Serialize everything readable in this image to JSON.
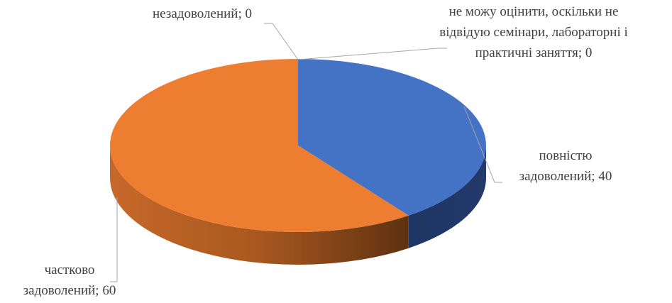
{
  "chart_data": {
    "type": "pie",
    "values": [
      40,
      60,
      0,
      0
    ],
    "value_labels": [
      "повністю задоволений; 40",
      "частково задоволений; 60",
      "незадоволений; 0",
      "не можу оцінити, оскільки не відвідую семінари, лабораторні і практичні заняття; 0"
    ],
    "colors": [
      "#4472c4",
      "#ed7d31",
      "#a5a5a5",
      "#ffc000"
    ]
  }
}
